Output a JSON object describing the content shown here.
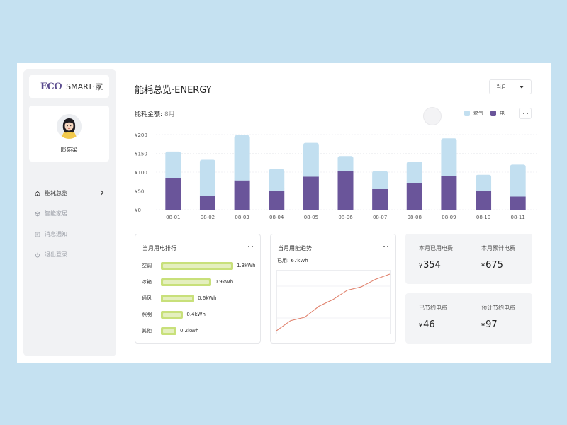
{
  "brand": {
    "mark": "ECO",
    "name": "SMART·家"
  },
  "user": {
    "name": "郎苑梁"
  },
  "nav": [
    {
      "label": "能耗总览",
      "icon": "home-icon",
      "active": true
    },
    {
      "label": "智能家居",
      "icon": "cube-icon",
      "active": false
    },
    {
      "label": "消息通知",
      "icon": "message-icon",
      "active": false
    },
    {
      "label": "退出登录",
      "icon": "power-icon",
      "active": false
    }
  ],
  "header": {
    "title": "能耗总览·ENERGY",
    "period_label": "当月"
  },
  "amount": {
    "label": "能耗金额:",
    "value": "8月"
  },
  "legend": [
    {
      "label": "燃气",
      "color": "#c2dff0"
    },
    {
      "label": "电",
      "color": "#6a559a"
    }
  ],
  "chart_data": {
    "type": "bar",
    "stacked": true,
    "categories": [
      "08-01",
      "08-02",
      "08-03",
      "08-04",
      "08-05",
      "08-06",
      "08-07",
      "08-08",
      "08-09",
      "08-10",
      "08-11"
    ],
    "series": [
      {
        "name": "电",
        "color": "#6a559a",
        "values": [
          85,
          38,
          78,
          50,
          88,
          103,
          55,
          70,
          90,
          50,
          35
        ]
      },
      {
        "name": "燃气",
        "color": "#c2dff0",
        "values": [
          70,
          95,
          120,
          58,
          90,
          40,
          48,
          58,
          100,
          43,
          85
        ]
      }
    ],
    "yticks": [
      "¥200",
      "¥150",
      "¥100",
      "¥50",
      "¥0"
    ],
    "ylim": [
      0,
      200
    ],
    "grid": true
  },
  "ranking": {
    "title": "当月用电排行",
    "items": [
      {
        "label": "空调",
        "value": "1.3kWh",
        "amount": 1.3
      },
      {
        "label": "冰箱",
        "value": "0.9kWh",
        "amount": 0.9
      },
      {
        "label": "通风",
        "value": "0.6kWh",
        "amount": 0.6
      },
      {
        "label": "照明",
        "value": "0.4kWh",
        "amount": 0.4
      },
      {
        "label": "其他",
        "value": "0.2kWh",
        "amount": 0.2
      }
    ]
  },
  "trend": {
    "title": "当月用能趋势",
    "used_label": "已用:",
    "used_value": "67kWh",
    "points": [
      0,
      12,
      16,
      29,
      37,
      48,
      52,
      61,
      67
    ]
  },
  "stats": {
    "month_used_label": "本月已用电费",
    "month_used_value": "354",
    "month_est_label": "本月预计电费",
    "month_est_value": "675",
    "saved_label": "已节约电费",
    "saved_value": "46",
    "est_saved_label": "预计节约电费",
    "est_saved_value": "97",
    "currency": "¥"
  }
}
